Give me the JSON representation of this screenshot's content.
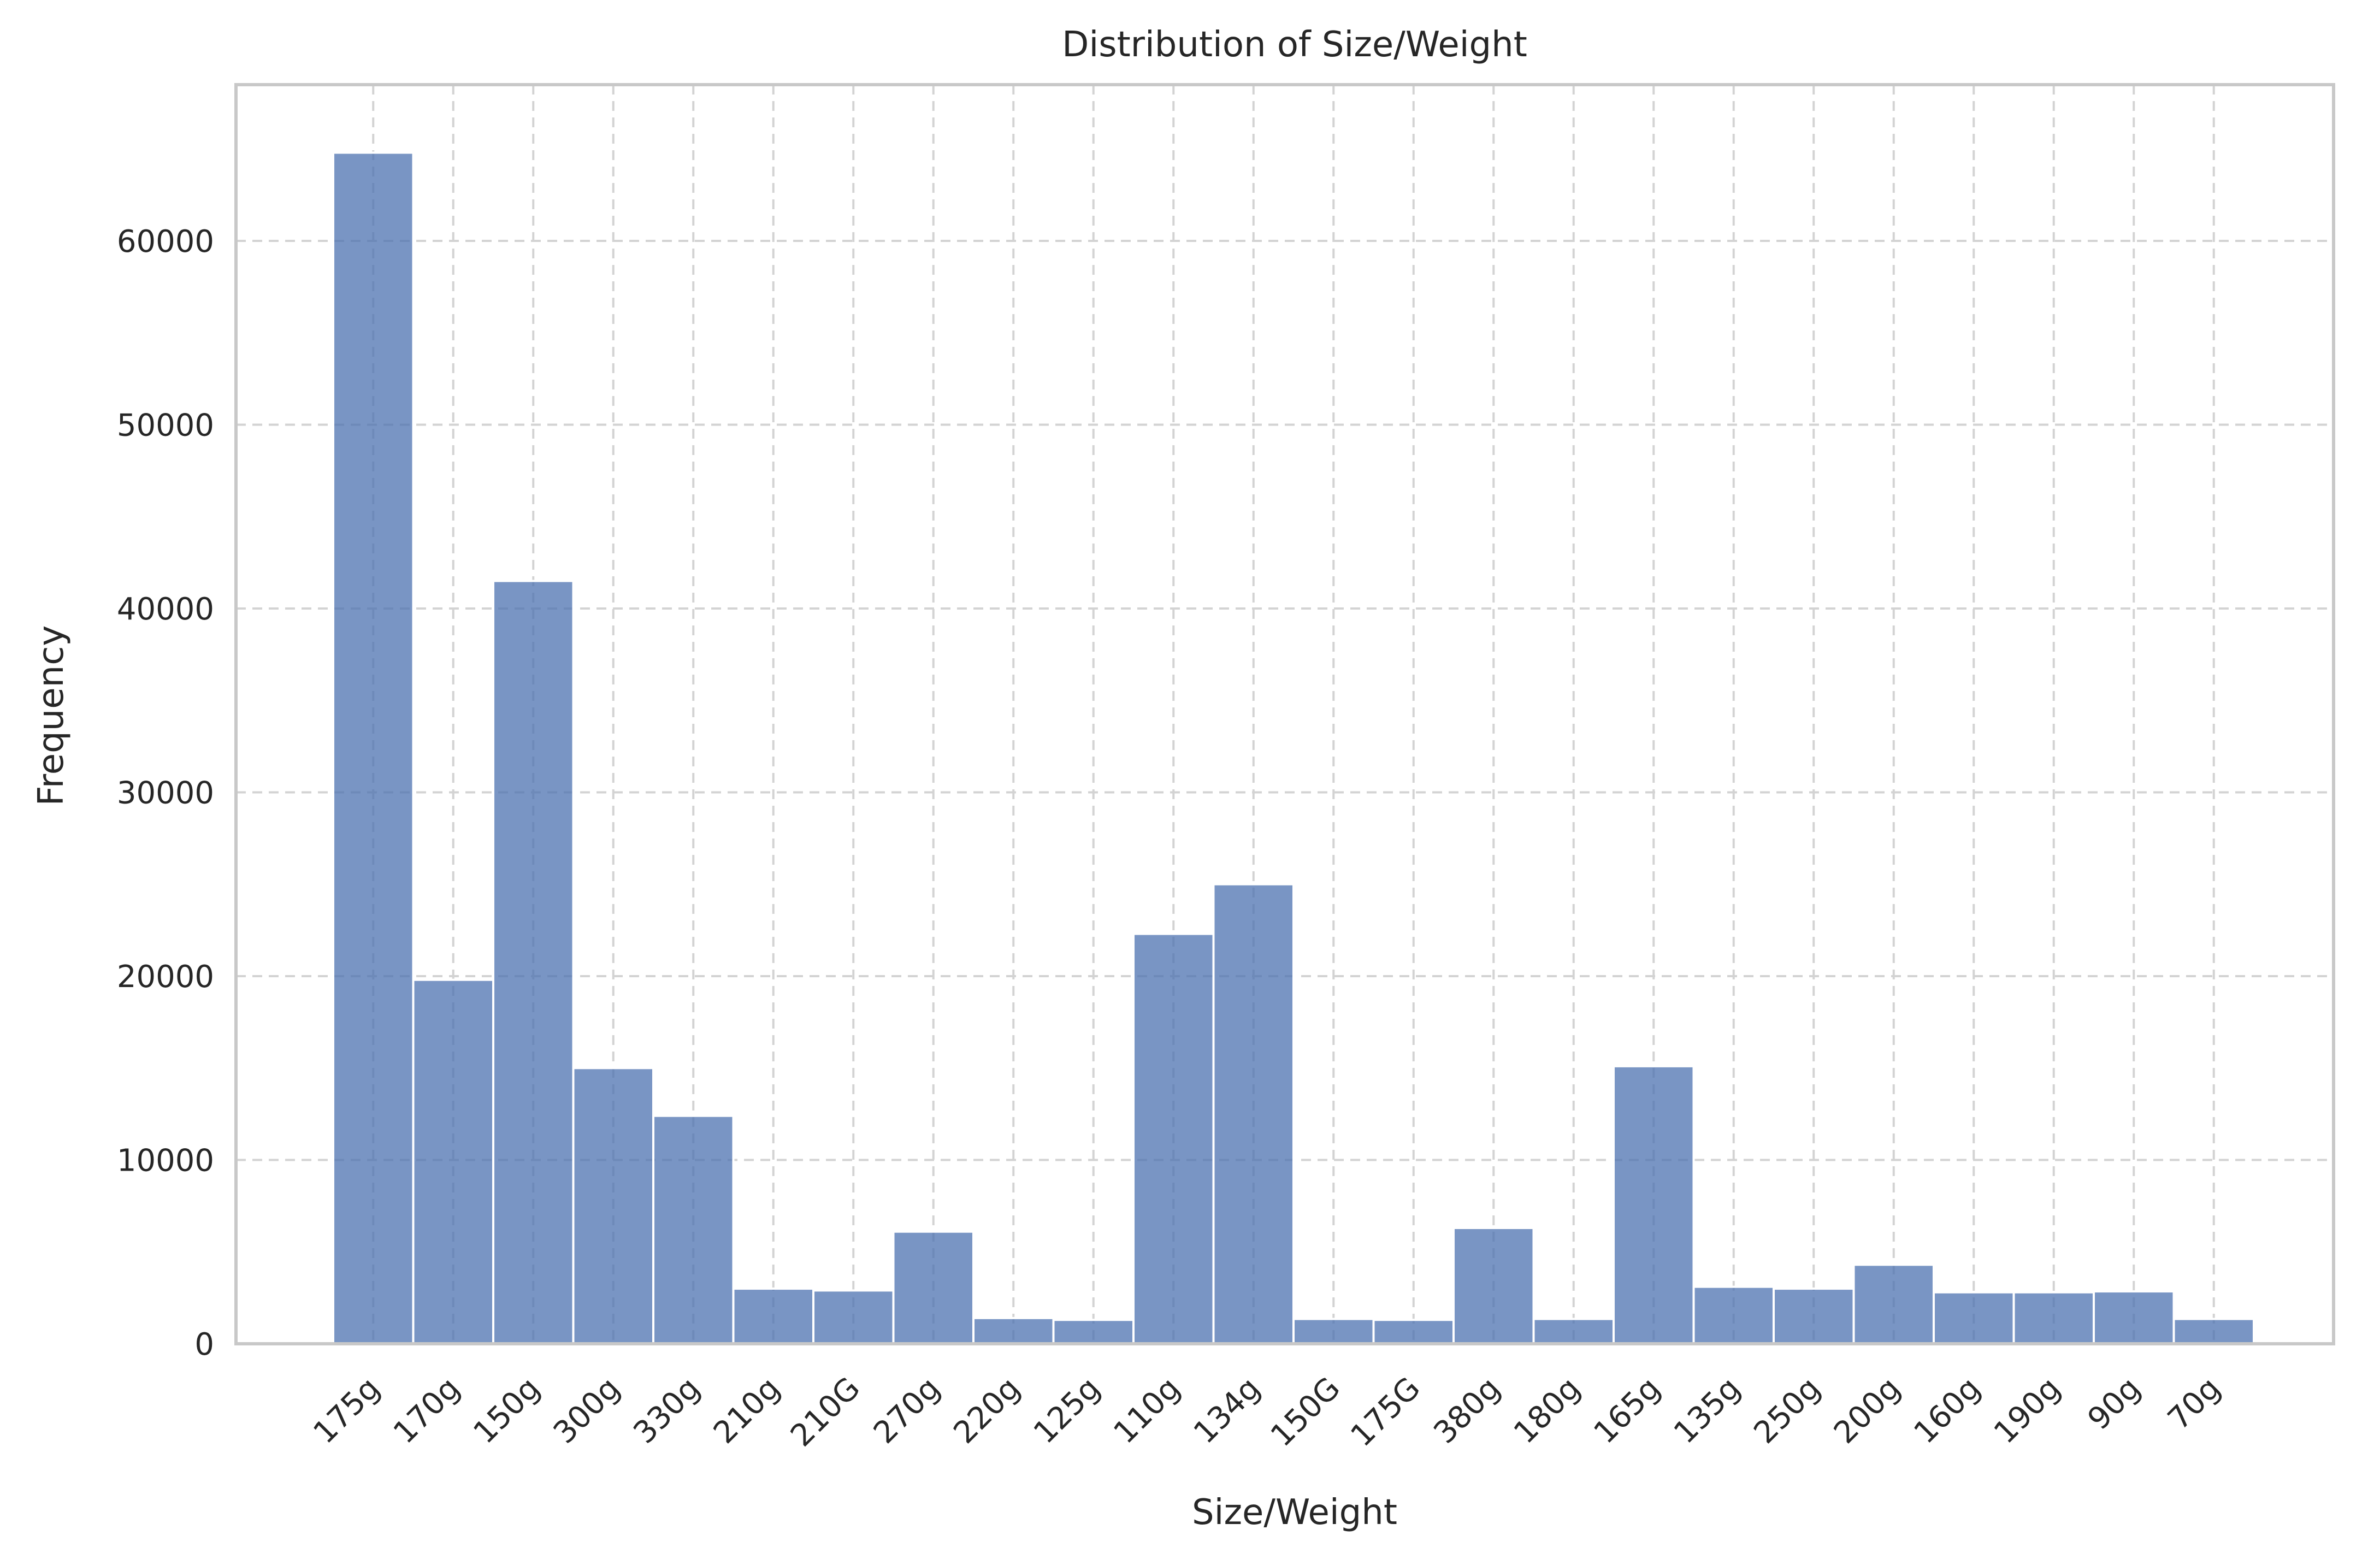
{
  "chart_data": {
    "type": "bar",
    "title": "Distribution of Size/Weight",
    "xlabel": "Size/Weight",
    "ylabel": "Frequency",
    "ylim": [
      0,
      68500
    ],
    "yticks": [
      0,
      10000,
      20000,
      30000,
      40000,
      50000,
      60000
    ],
    "grid": true,
    "bar_color": "#4c72b0",
    "categories": [
      "175g",
      "170g",
      "150g",
      "300g",
      "330g",
      "210g",
      "210G",
      "270g",
      "220g",
      "125g",
      "110g",
      "134g",
      "150G",
      "175G",
      "380g",
      "180g",
      "165g",
      "135g",
      "250g",
      "200g",
      "160g",
      "190g",
      "90g",
      "70g"
    ],
    "values": [
      64800,
      19800,
      41500,
      15000,
      12400,
      3000,
      2900,
      6100,
      1400,
      1300,
      22300,
      25000,
      1350,
      1300,
      6300,
      1350,
      15100,
      3100,
      3000,
      4300,
      2800,
      2800,
      2850,
      1350
    ]
  }
}
